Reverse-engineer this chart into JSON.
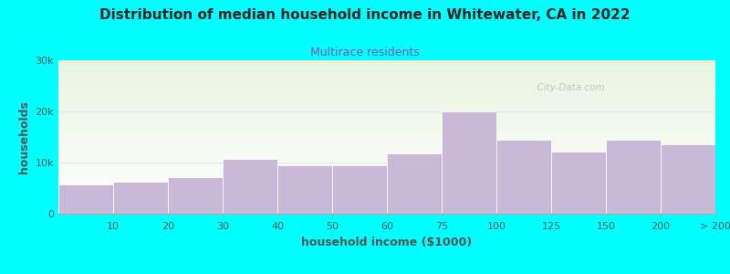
{
  "title": "Distribution of median household income in Whitewater, CA in 2022",
  "subtitle": "Multirace residents",
  "xlabel": "household income ($1000)",
  "ylabel": "households",
  "background_outer": "#00FFFF",
  "background_inner_top": "#e8f5e0",
  "background_inner_bottom": "#ffffff",
  "bar_color": "#c9b8d8",
  "bar_edge_color": "#ffffff",
  "bin_edges": [
    0,
    10,
    20,
    30,
    40,
    50,
    60,
    75,
    100,
    125,
    150,
    200,
    250
  ],
  "bin_labels": [
    "10",
    "20",
    "30",
    "40",
    "50",
    "60",
    "75",
    "100",
    "125",
    "150",
    "200",
    "> 200"
  ],
  "values": [
    5800,
    6300,
    7200,
    10700,
    9500,
    9500,
    11800,
    20000,
    14500,
    12200,
    14500,
    13500
  ],
  "ylim": [
    0,
    30000
  ],
  "yticks": [
    0,
    10000,
    20000,
    30000
  ],
  "ytick_labels": [
    "0",
    "10k",
    "20k",
    "30k"
  ],
  "watermark": "  City-Data.com",
  "title_fontsize": 11,
  "subtitle_fontsize": 9,
  "axis_label_fontsize": 9,
  "tick_fontsize": 8
}
